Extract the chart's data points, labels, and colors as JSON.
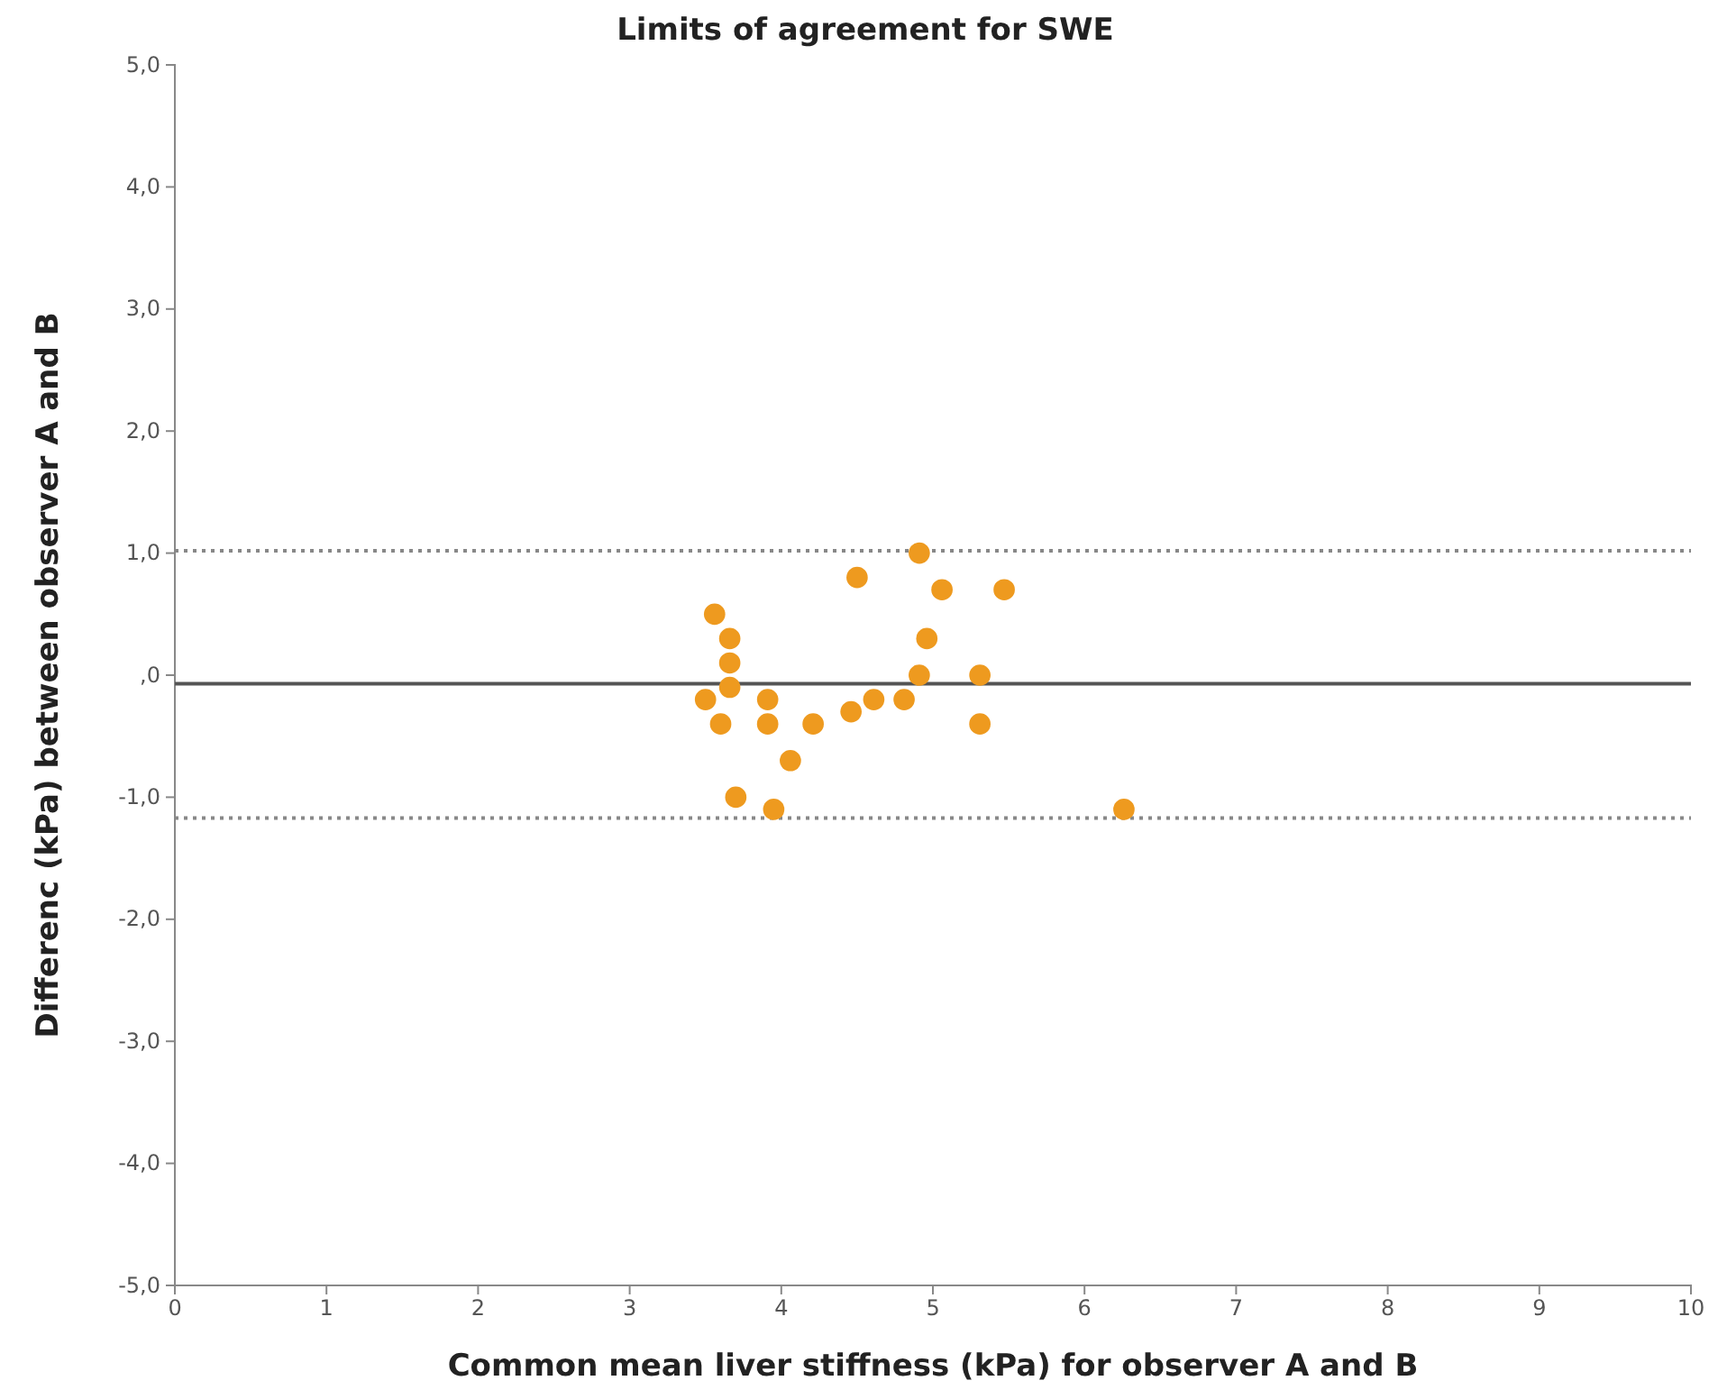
{
  "chart_data": {
    "type": "scatter",
    "title": "Limits of agreement for SWE",
    "xlabel": "Common mean liver stiffness (kPa) for observer A and B",
    "ylabel": "Differenc (kPa) between observer A and B",
    "x": [
      3.56,
      3.66,
      3.66,
      3.66,
      3.5,
      3.6,
      3.7,
      3.91,
      3.91,
      3.95,
      4.06,
      4.21,
      4.46,
      4.5,
      4.61,
      4.81,
      4.91,
      4.91,
      4.96,
      5.06,
      5.31,
      5.31,
      5.47,
      6.26
    ],
    "series": [
      {
        "color": "#ee9a1f",
        "values": [
          0.5,
          0.3,
          0.1,
          -0.1,
          -0.2,
          -0.4,
          -1.0,
          -0.2,
          -0.4,
          -1.1,
          -0.7,
          -0.4,
          -0.3,
          0.8,
          -0.2,
          -0.2,
          0.0,
          1.0,
          0.3,
          0.7,
          0.0,
          -0.4,
          0.7,
          -1.1
        ]
      }
    ],
    "xlim": [
      0,
      10
    ],
    "xticks": [
      0,
      1,
      2,
      3,
      4,
      5,
      6,
      7,
      8,
      9,
      10
    ],
    "ylim": [
      -5,
      5
    ],
    "yticks": [
      {
        "value": -5,
        "label": "-5,0"
      },
      {
        "value": -4,
        "label": "-4,0"
      },
      {
        "value": -3,
        "label": "-3,0"
      },
      {
        "value": -2,
        "label": "-2,0"
      },
      {
        "value": -1,
        "label": "-1,0"
      },
      {
        "value": 0,
        "label": ",0"
      },
      {
        "value": 1,
        "label": "1,0"
      },
      {
        "value": 2,
        "label": "2,0"
      },
      {
        "value": 3,
        "label": "3,0"
      },
      {
        "value": 4,
        "label": "4,0"
      },
      {
        "value": 5,
        "label": "5,0"
      }
    ],
    "ref_lines": [
      {
        "axis": "y",
        "value": 1.02,
        "line_style": "dotted",
        "color": "#888888"
      },
      {
        "axis": "y",
        "value": -0.07,
        "line_style": "solid",
        "color": "#555555"
      },
      {
        "axis": "y",
        "value": -1.17,
        "line_style": "dotted",
        "color": "#888888"
      }
    ],
    "marker": "circle"
  }
}
